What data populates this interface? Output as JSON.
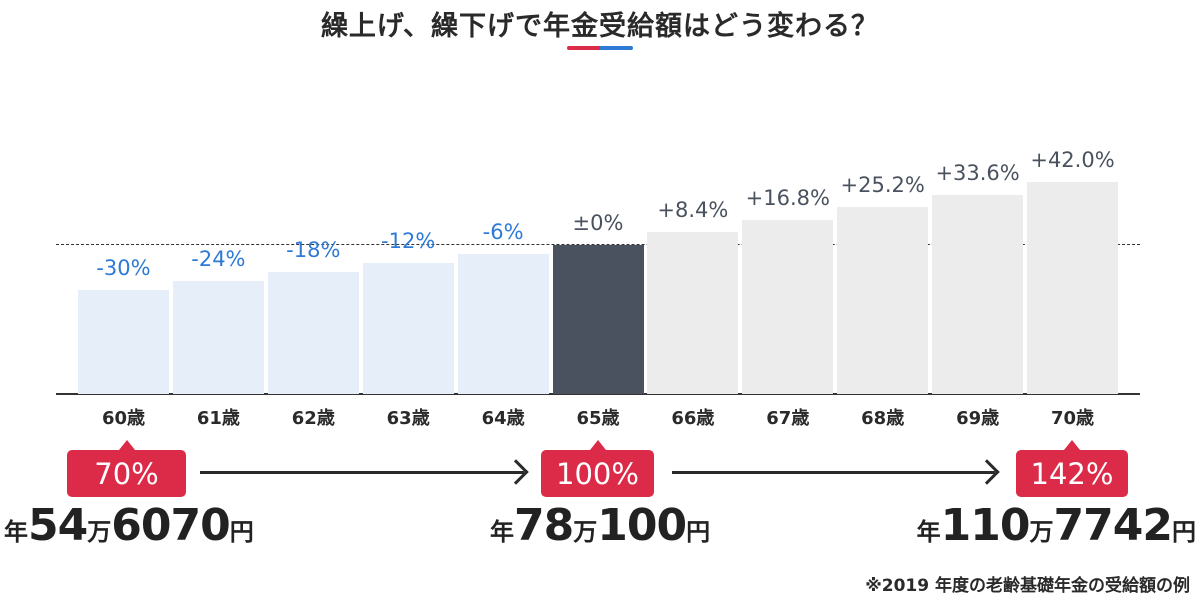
{
  "header": {
    "title": "繰上げ、繰下げで年金受給額はどう変わる？",
    "accent_colors": [
      "#dc2b48",
      "#2e7ad6"
    ]
  },
  "chart_data": {
    "type": "bar",
    "title": "繰上げ、繰下げで年金受給額はどう変わる？",
    "categories": [
      "60歳",
      "61歳",
      "62歳",
      "63歳",
      "64歳",
      "65歳",
      "66歳",
      "67歳",
      "68歳",
      "69歳",
      "70歳"
    ],
    "values": [
      70,
      76,
      82,
      88,
      94,
      100,
      108.4,
      116.8,
      125.2,
      133.6,
      142
    ],
    "value_labels": [
      "-30%",
      "-24%",
      "-18%",
      "-12%",
      "-6%",
      "±0%",
      "+8.4%",
      "+16.8%",
      "+25.2%",
      "+33.6%",
      "+42.0%"
    ],
    "xlabel": "",
    "ylabel": "",
    "reference_line": 100,
    "grid": false,
    "colors": {
      "reduced": "#e6eff9",
      "baseline": "#49525e",
      "increased": "#ececec",
      "reduced_label": "#2e7ad6",
      "increased_label": "#49525e"
    }
  },
  "markers": [
    {
      "age": "60歳",
      "ratio": "70%",
      "amount_prefix": "年",
      "amount_man": "54",
      "amount_man_unit": "万",
      "amount_rest": "6070",
      "amount_unit": "円"
    },
    {
      "age": "65歳",
      "ratio": "100%",
      "amount_prefix": "年",
      "amount_man": "78",
      "amount_man_unit": "万",
      "amount_rest": "100",
      "amount_unit": "円"
    },
    {
      "age": "70歳",
      "ratio": "142%",
      "amount_prefix": "年",
      "amount_man": "110",
      "amount_man_unit": "万",
      "amount_rest": "7742",
      "amount_unit": "円"
    }
  ],
  "badge_color": "#dc2b48",
  "footnote": "※2019 年度の老齢基礎年金の受給額の例"
}
